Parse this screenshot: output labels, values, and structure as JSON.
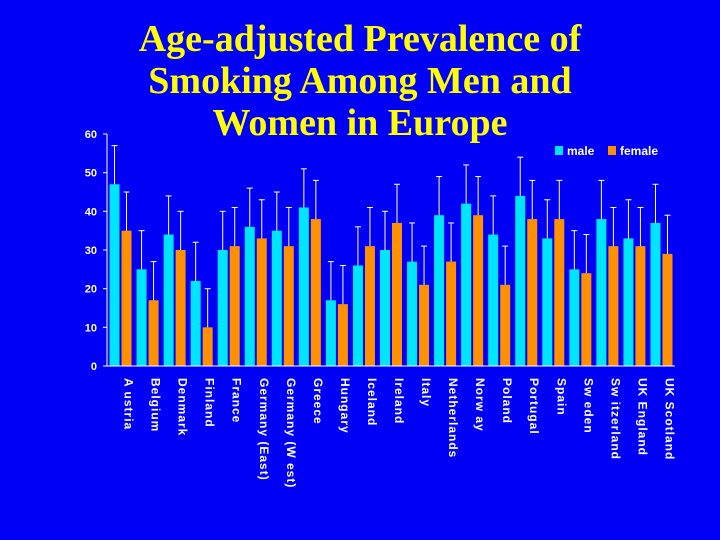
{
  "slide": {
    "title_lines": [
      "Age-adjusted Prevalence of",
      "Smoking Among Men and",
      "Women in Europe"
    ]
  },
  "colors": {
    "background": "#0000f5",
    "title": "#ffff00",
    "male": "#00e5ff",
    "female": "#ff9000",
    "axis": "#ffffff"
  },
  "chart_data": {
    "type": "bar",
    "title": "Age-adjusted Prevalence of Smoking Among Men and Women in Europe",
    "xlabel": "",
    "ylabel": "",
    "ylim": [
      0,
      60
    ],
    "yticks": [
      0,
      10,
      20,
      30,
      40,
      50,
      60
    ],
    "grid": false,
    "legend_position": "top-right",
    "error_bars": true,
    "categories": [
      "Austria",
      "Belgium",
      "Denmark",
      "Finland",
      "France",
      "Germany (East)",
      "Germany (West)",
      "Greece",
      "Hungary",
      "Iceland",
      "Ireland",
      "Italy",
      "Netherlands",
      "Norway",
      "Poland",
      "Portugal",
      "Spain",
      "Sweden",
      "Switzerland",
      "UK England",
      "UK Scotland"
    ],
    "category_labels": [
      "A ustria",
      "Belgium",
      "Denmark",
      "Finland",
      "France",
      "Germany (East)",
      "Germany (W est)",
      "Greece",
      "Hungary",
      "Iceland",
      "Ireland",
      "Italy",
      "Netherlands",
      "Norw ay",
      "Poland",
      "Portugal",
      "Spain",
      "Sw eden",
      "Sw itzerland",
      "UK England",
      "UK Scotland"
    ],
    "series": [
      {
        "name": "male",
        "values": [
          47,
          25,
          34,
          22,
          30,
          36,
          35,
          41,
          17,
          26,
          30,
          27,
          39,
          42,
          34,
          44,
          33,
          25,
          38,
          33,
          37
        ],
        "error_upper": [
          57,
          35,
          44,
          32,
          40,
          46,
          45,
          51,
          27,
          36,
          40,
          37,
          49,
          52,
          44,
          54,
          43,
          35,
          48,
          43,
          47
        ]
      },
      {
        "name": "female",
        "values": [
          35,
          17,
          30,
          10,
          31,
          33,
          31,
          38,
          16,
          31,
          37,
          21,
          27,
          39,
          21,
          38,
          38,
          24,
          31,
          31,
          29
        ],
        "error_upper": [
          45,
          27,
          40,
          20,
          41,
          43,
          41,
          48,
          26,
          41,
          47,
          31,
          37,
          49,
          31,
          48,
          48,
          34,
          41,
          41,
          39
        ]
      }
    ]
  }
}
